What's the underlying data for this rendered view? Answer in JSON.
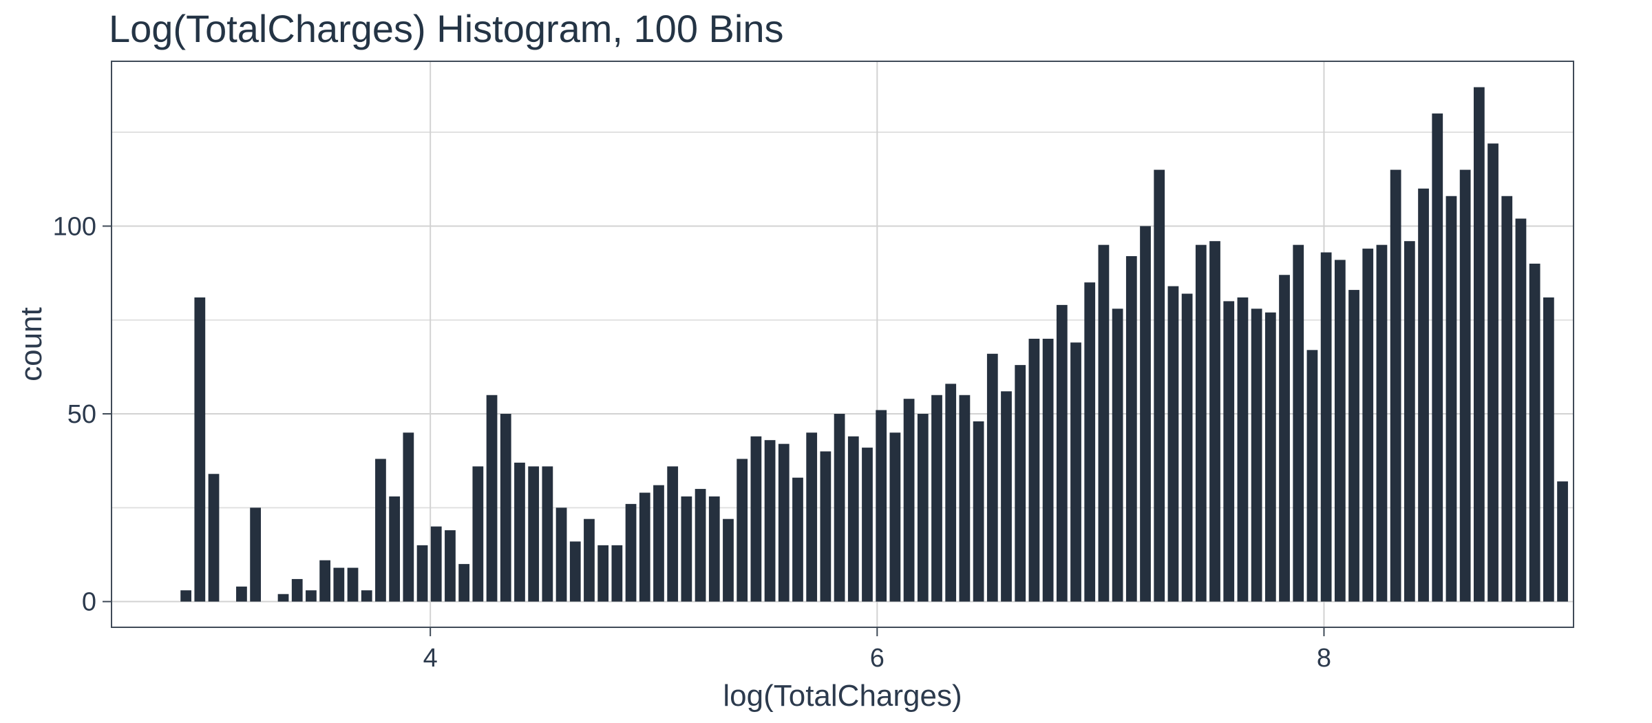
{
  "title": "Log(TotalCharges) Histogram, 100 Bins",
  "colors": {
    "bar": "#25303E",
    "panel_border": "#3F4A57",
    "tick_mark": "#3F4A57",
    "grid_major": "#D2D2D2",
    "grid_minor": "#E1E1E1",
    "text": "#2C3A4D",
    "title_text": "#243445",
    "background": "#FFFFFF"
  },
  "chart_data": {
    "type": "bar",
    "subtype": "histogram",
    "title": "Log(TotalCharges) Histogram, 100 Bins",
    "xlabel": "log(TotalCharges)",
    "ylabel": "count",
    "x_ticks": [
      4,
      6,
      8
    ],
    "y_ticks": [
      0,
      50,
      100
    ],
    "y_minor_gridlines": [
      25,
      75,
      125
    ],
    "x_major_gridlines": [
      4,
      6,
      8
    ],
    "xlim": [
      2.573,
      9.117
    ],
    "ylim": [
      -6.85,
      143.9
    ],
    "n_bins": 100,
    "bin_start": 2.875,
    "bin_width": 0.06224,
    "bar_rel_width": 0.78,
    "grid": true,
    "legend": false,
    "counts": [
      3,
      81,
      34,
      0,
      4,
      25,
      0,
      2,
      6,
      3,
      11,
      9,
      9,
      3,
      38,
      28,
      45,
      15,
      20,
      19,
      10,
      36,
      55,
      50,
      37,
      36,
      36,
      25,
      16,
      22,
      15,
      15,
      26,
      29,
      31,
      36,
      28,
      30,
      28,
      22,
      38,
      44,
      43,
      42,
      33,
      45,
      40,
      50,
      44,
      41,
      51,
      45,
      54,
      50,
      55,
      58,
      55,
      48,
      66,
      56,
      63,
      70,
      70,
      79,
      69,
      85,
      95,
      78,
      92,
      100,
      115,
      84,
      82,
      95,
      96,
      80,
      81,
      78,
      77,
      87,
      95,
      67,
      93,
      91,
      83,
      94,
      95,
      115,
      96,
      110,
      130,
      108,
      115,
      137,
      122,
      108,
      102,
      90,
      81,
      32
    ]
  }
}
